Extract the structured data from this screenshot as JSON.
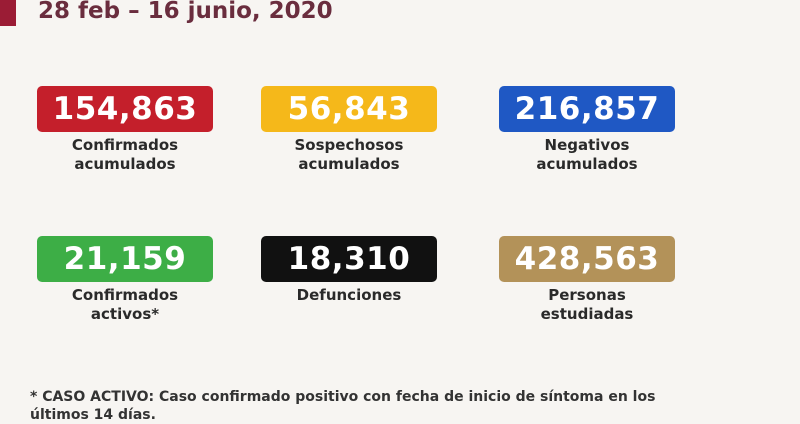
{
  "header": {
    "title": "28 feb – 16 junio, 2020"
  },
  "stats": [
    {
      "value": "154,863",
      "label": "Confirmados\nacumulados",
      "color": "#c41f2b"
    },
    {
      "value": "56,843",
      "label": "Sospechosos\nacumulados",
      "color": "#f5b81a"
    },
    {
      "value": "216,857",
      "label": "Negativos\nacumulados",
      "color": "#1f58c4"
    },
    {
      "value": "21,159",
      "label": "Confirmados\nactivos*",
      "color": "#3dae46"
    },
    {
      "value": "18,310",
      "label": "Defunciones",
      "color": "#111111"
    },
    {
      "value": "428,563",
      "label": "Personas\nestudiadas",
      "color": "#b39259"
    }
  ],
  "footnote": "* CASO ACTIVO: Caso confirmado positivo con fecha de inicio de síntoma en los últimos 14 días."
}
